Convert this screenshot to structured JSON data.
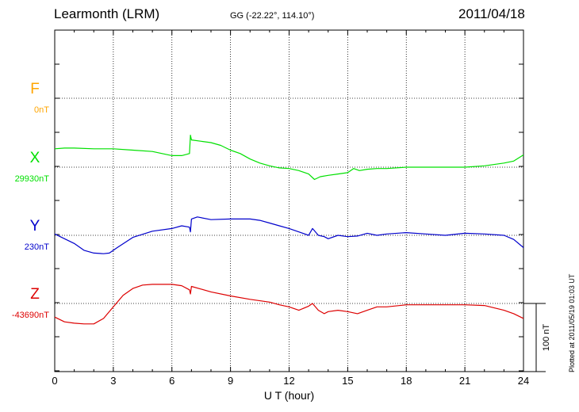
{
  "header": {
    "station": "Learmonth (LRM)",
    "coords": "GG (-22.22°, 114.10°)",
    "date": "2011/04/18"
  },
  "footer": {
    "plotted": "Plotted at 2011/05/19 01:03 UT"
  },
  "chart_data": {
    "type": "line",
    "xlabel": "U T (hour)",
    "xlim": [
      0,
      24
    ],
    "xticks": [
      0,
      3,
      6,
      9,
      12,
      15,
      18,
      21,
      24
    ],
    "grid": true,
    "scale_bar": "100 nT",
    "series": [
      {
        "name": "F",
        "baseline_label": "0nT",
        "color": "#FFA500",
        "x": [],
        "y": []
      },
      {
        "name": "X",
        "baseline_label": "29930nT",
        "color": "#00E000",
        "x": [
          0,
          0.5,
          1,
          2,
          3,
          4,
          5,
          5.5,
          6,
          6.5,
          6.9,
          6.95,
          7.0,
          7.5,
          8,
          8.5,
          9,
          9.5,
          10,
          10.5,
          11,
          11.5,
          12,
          12.5,
          13.0,
          13.3,
          13.6,
          14,
          14.5,
          15,
          15.3,
          15.6,
          16,
          16.5,
          17,
          18,
          19,
          20,
          21,
          22,
          23,
          23.5,
          24
        ],
        "y": [
          27,
          28,
          28,
          27,
          27,
          25,
          23,
          20,
          17,
          17,
          20,
          47,
          40,
          38,
          36,
          32,
          25,
          20,
          12,
          6,
          2,
          -1,
          -2,
          -5,
          -10,
          -18,
          -14,
          -12,
          -10,
          -8,
          -2,
          -5,
          -3,
          -2,
          -2,
          0,
          0,
          0,
          0,
          2,
          6,
          9,
          18
        ]
      },
      {
        "name": "Y",
        "baseline_label": "230nT",
        "color": "#0000CC",
        "x": [
          0,
          0.5,
          1,
          1.5,
          2,
          2.5,
          2.8,
          3.2,
          4,
          5,
          6,
          6.5,
          6.9,
          6.95,
          7.0,
          7.3,
          8,
          9,
          10,
          10.5,
          11,
          11.5,
          12,
          12.5,
          13,
          13.2,
          13.5,
          13.8,
          14,
          14.5,
          15,
          15.5,
          16,
          16.5,
          17,
          18,
          19,
          20,
          21,
          22,
          23,
          23.5,
          24
        ],
        "y": [
          2,
          -5,
          -12,
          -22,
          -26,
          -27,
          -26,
          -18,
          -3,
          6,
          10,
          14,
          12,
          5,
          24,
          27,
          23,
          24,
          24,
          22,
          18,
          14,
          10,
          5,
          0,
          10,
          0,
          -2,
          -5,
          0,
          -2,
          -1,
          3,
          0,
          2,
          4,
          2,
          0,
          3,
          2,
          0,
          -6,
          -18
        ]
      },
      {
        "name": "Z",
        "baseline_label": "-43690nT",
        "color": "#DD0000",
        "x": [
          0,
          0.5,
          1,
          1.5,
          2,
          2.5,
          3,
          3.5,
          4,
          4.5,
          5,
          5.5,
          6,
          6.5,
          6.9,
          6.95,
          7.0,
          7.5,
          8,
          9,
          10,
          11,
          11.5,
          12,
          12.5,
          13,
          13.2,
          13.5,
          13.8,
          14,
          14.5,
          15,
          15.5,
          16,
          16.5,
          17,
          18,
          19,
          20,
          21,
          22,
          23,
          23.5,
          24
        ],
        "y": [
          -20,
          -27,
          -29,
          -30,
          -30,
          -22,
          -5,
          12,
          22,
          27,
          28,
          28,
          28,
          26,
          20,
          14,
          25,
          21,
          17,
          11,
          6,
          2,
          -2,
          -5,
          -10,
          -4,
          0,
          -10,
          -15,
          -12,
          -10,
          -12,
          -15,
          -10,
          -5,
          -5,
          -2,
          -2,
          -2,
          -2,
          -3,
          -10,
          -15,
          -22
        ]
      }
    ]
  }
}
